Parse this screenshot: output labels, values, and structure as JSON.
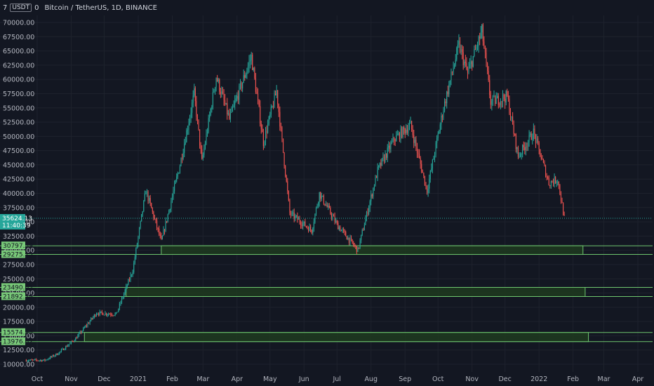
{
  "header": {
    "indicator_left": "7",
    "currency_badge": "USDT",
    "indicator_right": "0",
    "title": "Bitcoin / TetherUS, 1D, BINANCE"
  },
  "current_price": {
    "value": "35624.13",
    "countdown": "11:40:39",
    "color": "#26a69a"
  },
  "colors": {
    "up": "#26a69a",
    "down": "#ef5350",
    "zone_fill": "#1e3a1f",
    "zone_line": "#6ec66e",
    "label_bg": "#78c878",
    "bg": "#131722",
    "grid": "#1e222d"
  },
  "chart_data": {
    "type": "candlestick",
    "title": "Bitcoin / TetherUS, 1D, BINANCE",
    "ylim": [
      9000,
      71500
    ],
    "y_ticks": [
      "10000.00",
      "12500.00",
      "15000.00",
      "17500.00",
      "20000.00",
      "22500.00",
      "25000.00",
      "27500.00",
      "30000.00",
      "32500.00",
      "35000.00",
      "37500.00",
      "40000.00",
      "42500.00",
      "45000.00",
      "47500.00",
      "50000.00",
      "52500.00",
      "55000.00",
      "57500.00",
      "60000.00",
      "62500.00",
      "65000.00",
      "67500.00",
      "70000.00"
    ],
    "x_ticks": [
      {
        "label": "Oct",
        "date": "2020-10-01"
      },
      {
        "label": "Nov",
        "date": "2020-11-01"
      },
      {
        "label": "Dec",
        "date": "2020-12-01"
      },
      {
        "label": "2021",
        "date": "2021-01-01"
      },
      {
        "label": "Feb",
        "date": "2021-02-01"
      },
      {
        "label": "Mar",
        "date": "2021-03-01"
      },
      {
        "label": "Apr",
        "date": "2021-04-01"
      },
      {
        "label": "May",
        "date": "2021-05-01"
      },
      {
        "label": "Jun",
        "date": "2021-06-01"
      },
      {
        "label": "Jul",
        "date": "2021-07-01"
      },
      {
        "label": "Aug",
        "date": "2021-08-01"
      },
      {
        "label": "Sep",
        "date": "2021-09-01"
      },
      {
        "label": "Oct",
        "date": "2021-10-01"
      },
      {
        "label": "Nov",
        "date": "2021-11-01"
      },
      {
        "label": "Dec",
        "date": "2021-12-01"
      },
      {
        "label": "2022",
        "date": "2022-01-01"
      },
      {
        "label": "Feb",
        "date": "2022-02-01"
      },
      {
        "label": "Mar",
        "date": "2022-03-01"
      },
      {
        "label": "Apr",
        "date": "2022-04-01"
      }
    ],
    "date_range": [
      "2020-09-21",
      "2022-04-30"
    ],
    "price_path": [
      [
        "2020-09-21",
        10700
      ],
      [
        "2020-10-08",
        10700
      ],
      [
        "2020-10-20",
        11900
      ],
      [
        "2020-11-05",
        14500
      ],
      [
        "2020-11-24",
        19000
      ],
      [
        "2020-12-12",
        18800
      ],
      [
        "2020-12-27",
        26500
      ],
      [
        "2021-01-08",
        40500
      ],
      [
        "2021-01-22",
        31500
      ],
      [
        "2021-02-08",
        45000
      ],
      [
        "2021-02-21",
        57500
      ],
      [
        "2021-02-28",
        45500
      ],
      [
        "2021-03-13",
        60500
      ],
      [
        "2021-03-25",
        53000
      ],
      [
        "2021-04-14",
        64000
      ],
      [
        "2021-04-25",
        49000
      ],
      [
        "2021-05-07",
        58000
      ],
      [
        "2021-05-19",
        36500
      ],
      [
        "2021-06-08",
        33500
      ],
      [
        "2021-06-15",
        40000
      ],
      [
        "2021-07-01",
        34500
      ],
      [
        "2021-07-20",
        30000
      ],
      [
        "2021-08-07",
        44000
      ],
      [
        "2021-08-22",
        49500
      ],
      [
        "2021-09-06",
        52000
      ],
      [
        "2021-09-21",
        40500
      ],
      [
        "2021-10-06",
        55000
      ],
      [
        "2021-10-20",
        66000
      ],
      [
        "2021-10-28",
        61000
      ],
      [
        "2021-11-10",
        68500
      ],
      [
        "2021-11-18",
        56000
      ],
      [
        "2021-12-03",
        57000
      ],
      [
        "2021-12-13",
        46500
      ],
      [
        "2021-12-27",
        50700
      ],
      [
        "2022-01-10",
        41800
      ],
      [
        "2022-01-18",
        42500
      ],
      [
        "2022-01-24",
        35624
      ]
    ],
    "zones": [
      {
        "top": 30797.39,
        "bottom": 29275.15,
        "top_label": "30797.39",
        "bottom_label": "29275.15",
        "start": "2021-01-22",
        "end": "2022-02-10"
      },
      {
        "top": 23490.63,
        "bottom": 21892.28,
        "top_label": "23490.63",
        "bottom_label": "21892.28",
        "start": "2020-12-21",
        "end": "2022-02-12"
      },
      {
        "top": 15574.98,
        "bottom": 13976.62,
        "top_label": "15574.98",
        "bottom_label": "13976.62",
        "start": "2020-11-13",
        "end": "2022-02-15"
      }
    ]
  }
}
